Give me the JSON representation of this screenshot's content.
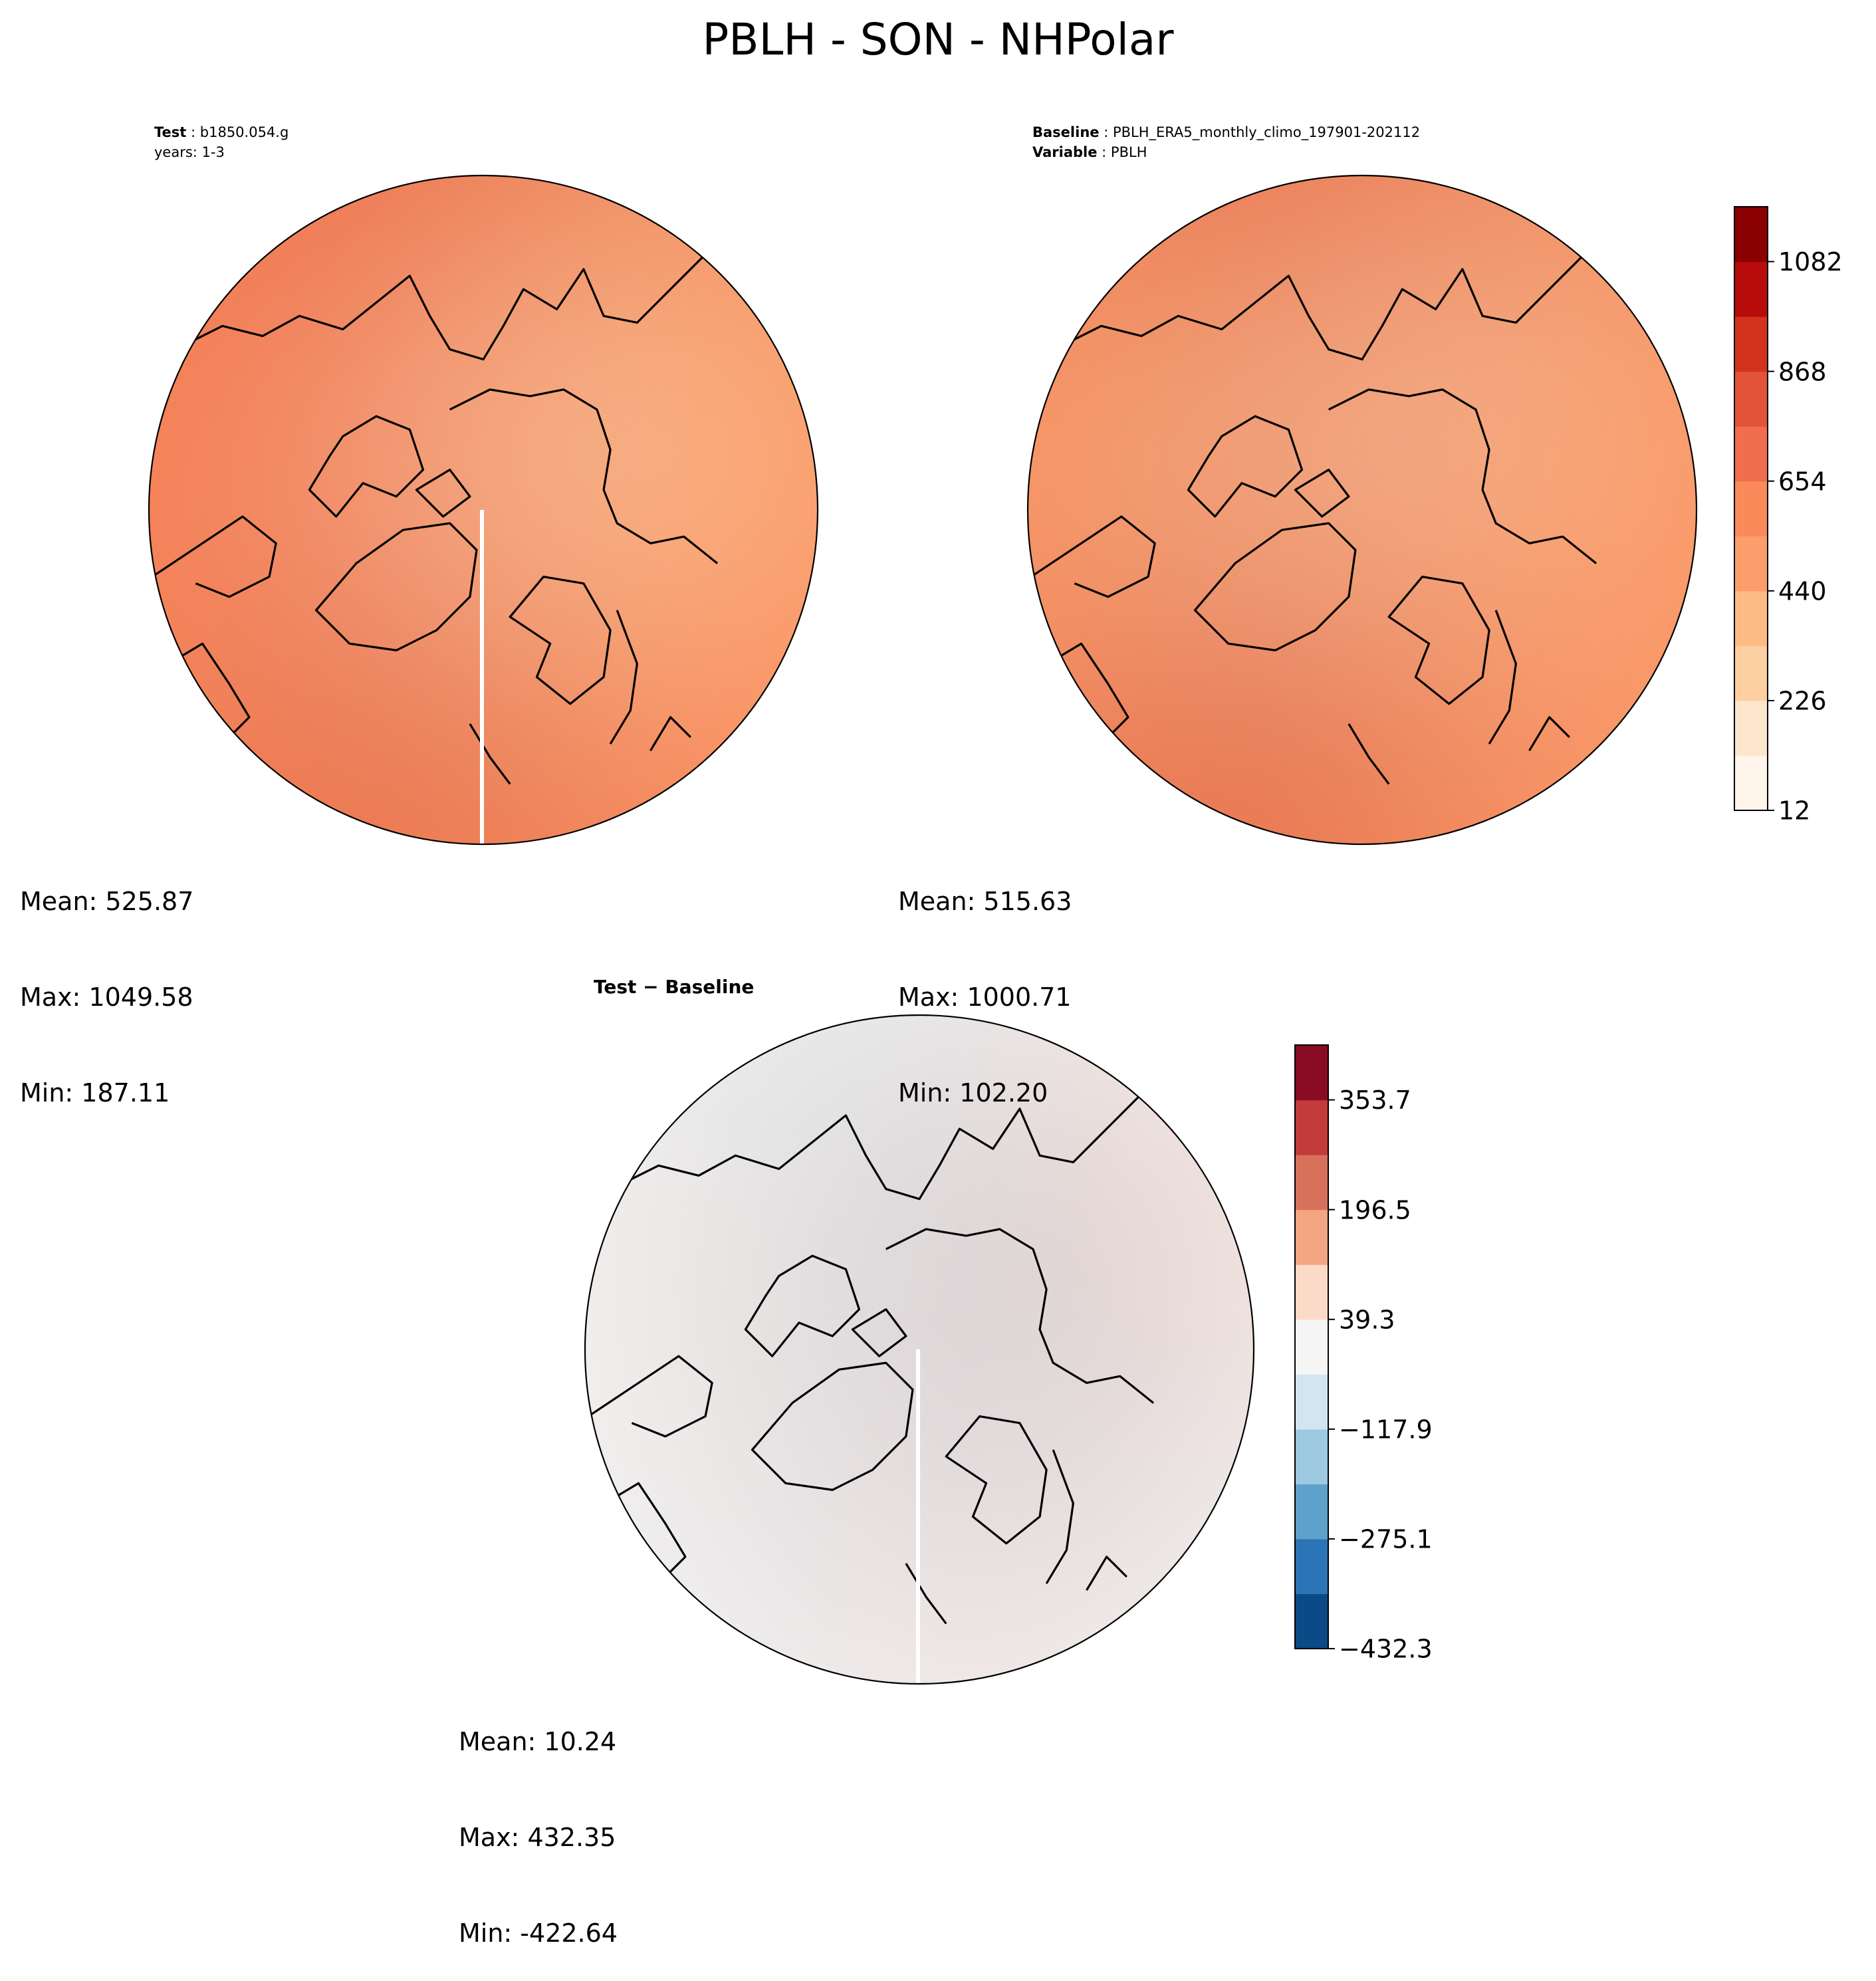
{
  "title": "PBLH - SON - NHPolar",
  "colors": {
    "sequential": [
      "#fff5eb",
      "#fee6ce",
      "#fdd0a2",
      "#fdbb84",
      "#fc9e6b",
      "#fb8a5a",
      "#f16d4d",
      "#e25339",
      "#d3321d",
      "#b80c0c",
      "#8b0000"
    ],
    "diverging": [
      "#0b4a87",
      "#2b74b5",
      "#5ea1cc",
      "#9ecae1",
      "#d2e5f0",
      "#f5f5f5",
      "#fbdbc8",
      "#f4a582",
      "#d8715c",
      "#c33b3b",
      "#8a0b24"
    ],
    "land_outline": "#000000"
  },
  "panels": {
    "test": {
      "label_bold": "Test",
      "label_value": "b1850.054.g",
      "subtitle": "years: 1-3",
      "mean": "Mean: 525.87",
      "max": "Max: 1049.58",
      "min": "Min: 187.11"
    },
    "baseline": {
      "label_bold": "Baseline",
      "label_value": "PBLH_ERA5_monthly_climo_197901-202112",
      "var_bold": "Variable",
      "var_value": "PBLH",
      "mean": "Mean: 515.63",
      "max": "Max: 1000.71",
      "min": "Min: 102.20"
    },
    "diff": {
      "label": "Test − Baseline",
      "mean": "Mean: 10.24",
      "max": "Max: 432.35",
      "min": "Min: -422.64"
    }
  },
  "chart_data": [
    {
      "type": "heatmap",
      "title": "Test: b1850.054.g",
      "projection": "NH polar stereographic",
      "variable": "PBLH",
      "stats": {
        "mean": 525.87,
        "max": 1049.58,
        "min": 187.11
      },
      "colorbar": {
        "min": 12,
        "max": 1189,
        "tick_values": [
          12,
          226,
          440,
          654,
          868,
          1082
        ],
        "tick_labels": [
          "12",
          "226",
          "440",
          "654",
          "868",
          "1082"
        ]
      }
    },
    {
      "type": "heatmap",
      "title": "Baseline: PBLH_ERA5_monthly_climo_197901-202112",
      "projection": "NH polar stereographic",
      "variable": "PBLH",
      "stats": {
        "mean": 515.63,
        "max": 1000.71,
        "min": 102.2
      },
      "colorbar": {
        "min": 12,
        "max": 1189,
        "tick_values": [
          12,
          226,
          440,
          654,
          868,
          1082
        ],
        "tick_labels": [
          "12",
          "226",
          "440",
          "654",
          "868",
          "1082"
        ]
      }
    },
    {
      "type": "heatmap",
      "title": "Test − Baseline",
      "projection": "NH polar stereographic",
      "variable": "PBLH difference",
      "stats": {
        "mean": 10.24,
        "max": 432.35,
        "min": -422.64
      },
      "colorbar": {
        "min": -432.3,
        "max": 432.3,
        "tick_values": [
          -432.3,
          -275.1,
          -117.9,
          39.3,
          196.5,
          353.7
        ],
        "tick_labels": [
          "−432.3",
          "−275.1",
          "−117.9",
          "39.3",
          "196.5",
          "353.7"
        ]
      }
    }
  ]
}
